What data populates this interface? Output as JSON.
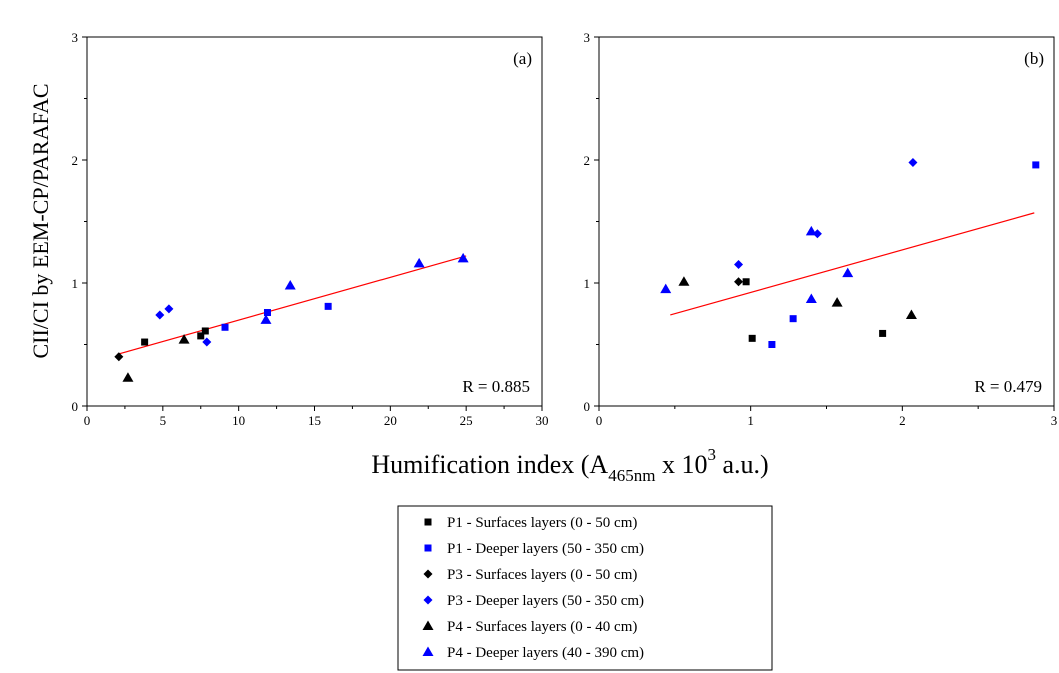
{
  "ylabel": "CII/CI by EEM-CP/PARAFAC",
  "xlabel": {
    "main": "Humification index (A",
    "sub": "465nm",
    "mid": " x 10",
    "sup": "3",
    "end": " a.u.)"
  },
  "colors": {
    "black": "#000000",
    "blue": "#0000ff",
    "fit": "#ff0000"
  },
  "legend": [
    {
      "label": "P1 - Surfaces layers (0 - 50 cm)",
      "marker": "square",
      "color": "#000000"
    },
    {
      "label": "P1 - Deeper layers (50 - 350 cm)",
      "marker": "square",
      "color": "#0000ff"
    },
    {
      "label": "P3 - Surfaces layers (0 - 50 cm)",
      "marker": "diamond",
      "color": "#000000"
    },
    {
      "label": "P3 - Deeper layers (50 - 350 cm)",
      "marker": "diamond",
      "color": "#0000ff"
    },
    {
      "label": "P4 - Surfaces layers (0 - 40 cm)",
      "marker": "triangle",
      "color": "#000000"
    },
    {
      "label": "P4 - Deeper layers (40 - 390 cm)",
      "marker": "triangle",
      "color": "#0000ff"
    }
  ],
  "chart_data": [
    {
      "type": "scatter",
      "panel_label": "(a)",
      "r_label": "R = 0.885",
      "xlim": [
        0,
        30
      ],
      "ylim": [
        0,
        3
      ],
      "xticks": [
        "0",
        "5",
        "10",
        "15",
        "20",
        "25",
        "30"
      ],
      "yticks": [
        "0",
        "1",
        "2",
        "3"
      ],
      "fit_line": {
        "x": [
          2.0,
          25.0
        ],
        "y": [
          0.42,
          1.22
        ]
      },
      "series": [
        {
          "marker": "square",
          "color": "#000000",
          "x": [
            3.8,
            7.5,
            7.8
          ],
          "y": [
            0.52,
            0.57,
            0.61
          ]
        },
        {
          "marker": "square",
          "color": "#0000ff",
          "x": [
            9.1,
            11.9,
            15.9
          ],
          "y": [
            0.64,
            0.76,
            0.81
          ]
        },
        {
          "marker": "diamond",
          "color": "#000000",
          "x": [
            2.1
          ],
          "y": [
            0.4
          ]
        },
        {
          "marker": "diamond",
          "color": "#0000ff",
          "x": [
            4.8,
            5.4,
            7.9
          ],
          "y": [
            0.74,
            0.79,
            0.52
          ]
        },
        {
          "marker": "triangle",
          "color": "#000000",
          "x": [
            2.7,
            6.4
          ],
          "y": [
            0.23,
            0.54
          ]
        },
        {
          "marker": "triangle",
          "color": "#0000ff",
          "x": [
            11.8,
            13.4,
            21.9,
            24.8
          ],
          "y": [
            0.7,
            0.98,
            1.16,
            1.2
          ]
        }
      ]
    },
    {
      "type": "scatter",
      "panel_label": "(b)",
      "r_label": "R = 0.479",
      "xlim": [
        0,
        3
      ],
      "ylim": [
        0,
        3
      ],
      "xticks": [
        "0",
        "1",
        "2",
        "3"
      ],
      "yticks": [
        "0",
        "1",
        "2",
        "3"
      ],
      "fit_line": {
        "x": [
          0.47,
          2.87
        ],
        "y": [
          0.74,
          1.57
        ]
      },
      "series": [
        {
          "marker": "square",
          "color": "#000000",
          "x": [
            0.97,
            1.01,
            1.87
          ],
          "y": [
            1.01,
            0.55,
            0.59
          ]
        },
        {
          "marker": "square",
          "color": "#0000ff",
          "x": [
            1.14,
            1.28,
            2.88
          ],
          "y": [
            0.5,
            0.71,
            1.96
          ]
        },
        {
          "marker": "diamond",
          "color": "#000000",
          "x": [
            0.92
          ],
          "y": [
            1.01
          ]
        },
        {
          "marker": "diamond",
          "color": "#0000ff",
          "x": [
            0.92,
            1.44,
            2.07
          ],
          "y": [
            1.15,
            1.4,
            1.98
          ]
        },
        {
          "marker": "triangle",
          "color": "#000000",
          "x": [
            0.56,
            1.57,
            2.06
          ],
          "y": [
            1.01,
            0.84,
            0.74
          ]
        },
        {
          "marker": "triangle",
          "color": "#0000ff",
          "x": [
            0.44,
            1.4,
            1.4,
            1.64
          ],
          "y": [
            0.95,
            1.42,
            0.87,
            1.08
          ]
        }
      ]
    }
  ]
}
